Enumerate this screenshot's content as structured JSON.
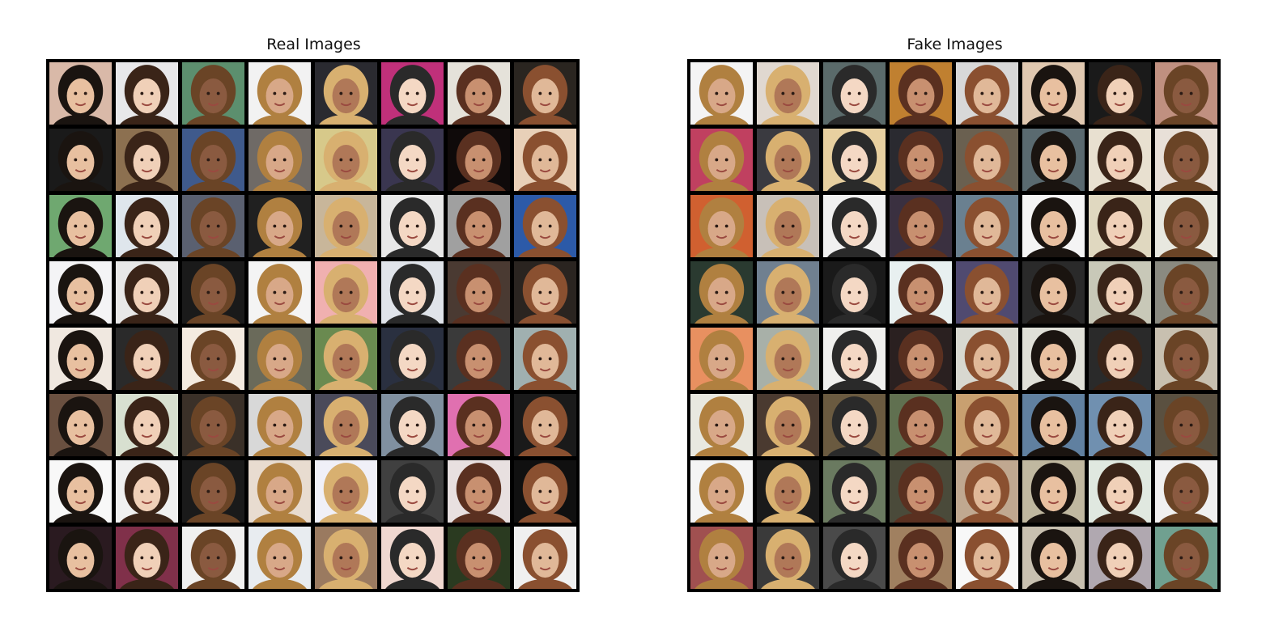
{
  "panels": [
    {
      "title": "Real Images",
      "rows": 8,
      "cols": 8,
      "tile_colors": [
        [
          "#d9b9a8",
          "#e8e8ea",
          "#5c8f6e",
          "#f2f2f2",
          "#2a2a30",
          "#c0307a",
          "#e5e2da",
          "#2a2520"
        ],
        [
          "#1a1a1a",
          "#8c7050",
          "#3f5a8c",
          "#6f6a66",
          "#d7c98a",
          "#3a3650",
          "#0f0a0a",
          "#e8d0b8"
        ],
        [
          "#6fa870",
          "#dfe6ec",
          "#5a6070",
          "#202020",
          "#c8b69a",
          "#e8e8e8",
          "#a0a0a0",
          "#2c5aa8"
        ],
        [
          "#f4f4f6",
          "#e8e8e8",
          "#1a1a1a",
          "#f4f4f4",
          "#f0b0b0",
          "#e0e4ea",
          "#4a3a32",
          "#2a2420"
        ],
        [
          "#f0e8e0",
          "#2a2a2a",
          "#f4ebe0",
          "#6a6a5a",
          "#6a8a50",
          "#2a3040",
          "#3a3a3a",
          "#a0b0b0"
        ],
        [
          "#6a5040",
          "#d8e0d0",
          "#3a3028",
          "#d8d8d8",
          "#4a4a5a",
          "#8090a0",
          "#e070b0",
          "#1a1a1a"
        ],
        [
          "#f8f8f8",
          "#f0f0f0",
          "#1a1a1a",
          "#e8dcd0",
          "#f0f0f8",
          "#404040",
          "#e8e0e0",
          "#101010"
        ],
        [
          "#2a1a20",
          "#80304a",
          "#f0f0f0",
          "#e8ecf0",
          "#9a7a60",
          "#f0d8d0",
          "#2a3a20",
          "#f0f0f0"
        ]
      ]
    },
    {
      "title": "Fake Images",
      "rows": 8,
      "cols": 8,
      "tile_colors": [
        [
          "#f4f4f4",
          "#e0d8d0",
          "#5a6a6a",
          "#c08030",
          "#d8d8d8",
          "#e0c8b0",
          "#1a1a1a",
          "#c09080"
        ],
        [
          "#c04060",
          "#3a3a40",
          "#e8d0a0",
          "#2a2a30",
          "#6a6050",
          "#5a6a70",
          "#e8e0d0",
          "#e8e0d8"
        ],
        [
          "#d06030",
          "#c8c0b8",
          "#f0f0f0",
          "#3a3040",
          "#6a8090",
          "#f4f4f4",
          "#e0d8c0",
          "#e8e8e0"
        ],
        [
          "#2a3a30",
          "#708090",
          "#1a1a1a",
          "#e8f0f0",
          "#504a70",
          "#2a2a2a",
          "#c8c8b8",
          "#8a8a80"
        ],
        [
          "#e89060",
          "#a8b0a8",
          "#f0f0ee",
          "#2a2020",
          "#d8d8d0",
          "#e0e0d8",
          "#2a2a2a",
          "#c8c0b0"
        ],
        [
          "#e8e8e0",
          "#4a3a30",
          "#6a5a40",
          "#607050",
          "#c8a070",
          "#6080a0",
          "#7090b0",
          "#5a5040"
        ],
        [
          "#f4f4f4",
          "#1a1a1a",
          "#6a7a60",
          "#4a4a3a",
          "#c0a890",
          "#c0b8a0",
          "#e0e8e0",
          "#f0f0f0"
        ],
        [
          "#a05050",
          "#3a3a3a",
          "#4a4a4a",
          "#a08060",
          "#f8f8f8",
          "#c8c0b0",
          "#b0a8b0",
          "#70a090"
        ]
      ]
    }
  ]
}
